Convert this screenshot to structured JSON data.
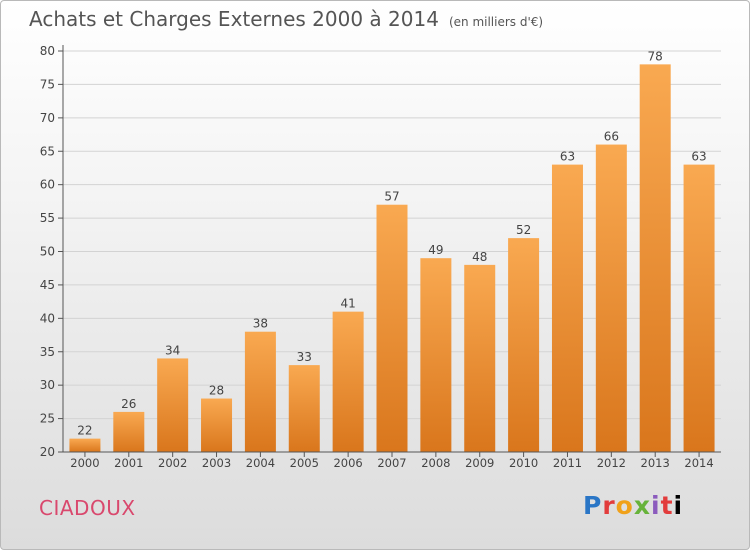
{
  "header": {
    "title": "Achats et Charges Externes 2000 à 2014",
    "subtitle": "(en milliers d'€)"
  },
  "footer": {
    "commune": "CIADOUX",
    "logo": [
      "P",
      "r",
      "o",
      "x",
      "i",
      "t",
      "i"
    ]
  },
  "colors": {
    "bar_light": "#f9a951",
    "bar_dark": "#d9761c",
    "commune": "#d9486d"
  },
  "chart_data": {
    "type": "bar",
    "title": "Achats et Charges Externes 2000 à 2014",
    "subtitle": "(en milliers d'€)",
    "categories": [
      "2000",
      "2001",
      "2002",
      "2003",
      "2004",
      "2005",
      "2006",
      "2007",
      "2008",
      "2009",
      "2010",
      "2011",
      "2012",
      "2013",
      "2014"
    ],
    "values": [
      22,
      26,
      34,
      28,
      38,
      33,
      41,
      57,
      49,
      48,
      52,
      63,
      66,
      78,
      63
    ],
    "ylim": [
      20,
      80
    ],
    "yticks": [
      20,
      25,
      30,
      35,
      40,
      45,
      50,
      55,
      60,
      65,
      70,
      75,
      80
    ],
    "grid": true,
    "xlabel": "",
    "ylabel": ""
  }
}
